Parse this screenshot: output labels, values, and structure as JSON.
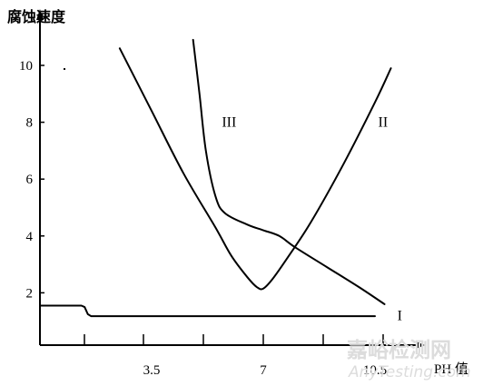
{
  "chart_data": {
    "type": "line",
    "title": "",
    "ylabel": "腐蚀速度",
    "xlabel": "PH 值",
    "xlim": [
      0,
      12.5
    ],
    "ylim": [
      0,
      11
    ],
    "x_ticks": [
      {
        "x": 3.5,
        "label": "3.5"
      },
      {
        "x": 7,
        "label": "7"
      },
      {
        "x": 10.5,
        "label": "10.5"
      }
    ],
    "y_ticks": [
      {
        "y": 2,
        "label": "2"
      },
      {
        "y": 4,
        "label": "4"
      },
      {
        "y": 6,
        "label": "6"
      },
      {
        "y": 8,
        "label": "8"
      },
      {
        "y": 10,
        "label": "10"
      }
    ],
    "series": [
      {
        "name": "I",
        "values": [
          [
            0,
            1.55
          ],
          [
            1.3,
            1.55
          ],
          [
            1.4,
            1.5
          ],
          [
            1.5,
            1.25
          ],
          [
            1.6,
            1.18
          ],
          [
            3.5,
            1.18
          ],
          [
            7,
            1.18
          ],
          [
            10.5,
            1.18
          ]
        ]
      },
      {
        "name": "II",
        "values": [
          [
            2.5,
            10.6
          ],
          [
            3.5,
            8.4
          ],
          [
            4.5,
            6.2
          ],
          [
            5.5,
            4.3
          ],
          [
            6.0,
            3.3
          ],
          [
            6.5,
            2.55
          ],
          [
            6.8,
            2.2
          ],
          [
            7.0,
            2.15
          ],
          [
            7.3,
            2.5
          ],
          [
            7.8,
            3.3
          ],
          [
            8.5,
            4.5
          ],
          [
            9.5,
            6.5
          ],
          [
            10.5,
            8.7
          ],
          [
            11.0,
            9.9
          ]
        ]
      },
      {
        "name": "III",
        "values": [
          [
            4.8,
            10.9
          ],
          [
            5.0,
            9.0
          ],
          [
            5.2,
            7.0
          ],
          [
            5.5,
            5.4
          ],
          [
            5.8,
            4.8
          ],
          [
            6.5,
            4.4
          ],
          [
            7.0,
            4.2
          ],
          [
            7.5,
            4.0
          ],
          [
            8.0,
            3.6
          ],
          [
            9.0,
            2.9
          ],
          [
            10.0,
            2.2
          ],
          [
            10.8,
            1.6
          ]
        ]
      }
    ],
    "curve_labels": [
      {
        "text": "III",
        "x": 5.7,
        "y": 8.0
      },
      {
        "text": "II",
        "x": 10.6,
        "y": 8.0
      },
      {
        "text": "I",
        "x": 11.2,
        "y": 1.2
      }
    ],
    "grid": false,
    "legend": "none"
  },
  "watermark": {
    "cn": "嘉峪检测网",
    "en": "AnyTesting.com"
  }
}
